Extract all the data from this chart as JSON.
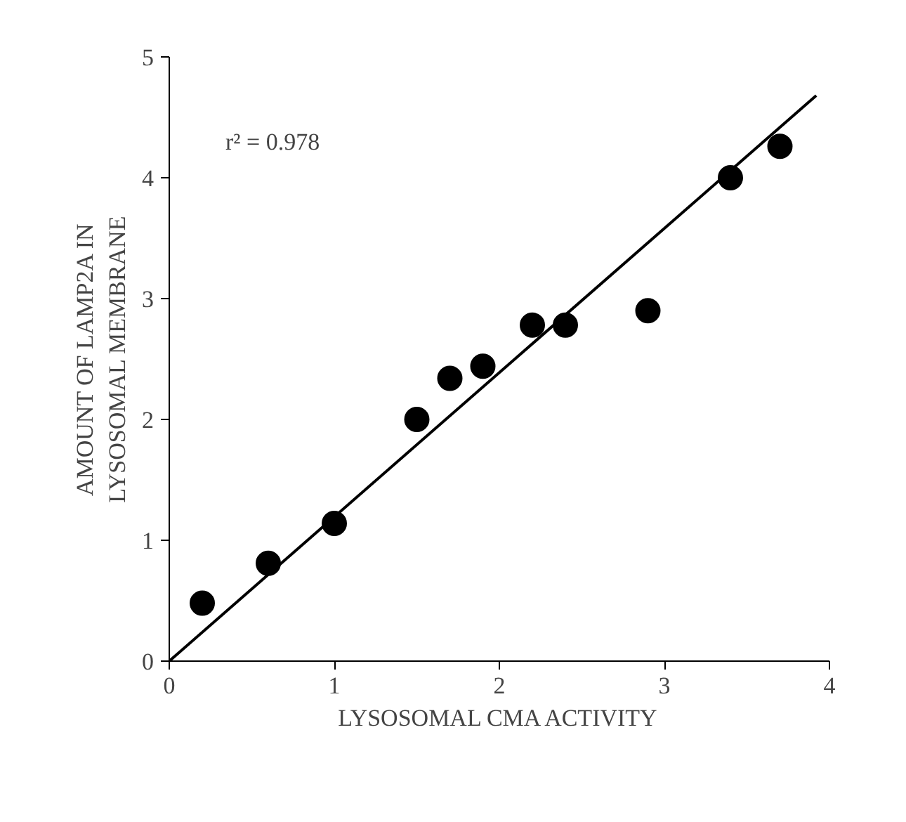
{
  "chart_data": {
    "type": "scatter",
    "xlabel": "LYSOSOMAL CMA ACTIVITY",
    "ylabel": "AMOUNT OF LAMP2A IN\nLYSOSOMAL MEMBRANE",
    "annotations": [
      "r² = 0.978"
    ],
    "xlim": [
      0,
      4
    ],
    "ylim": [
      0,
      5
    ],
    "xticks": [
      0,
      1,
      2,
      3,
      4
    ],
    "yticks": [
      0,
      1,
      2,
      3,
      4,
      5
    ],
    "grid": false,
    "series": [
      {
        "marker": "circle",
        "color": "#000000",
        "x": [
          0.2,
          0.6,
          1.0,
          1.5,
          1.7,
          1.9,
          2.2,
          2.4,
          2.9,
          3.4,
          3.7
        ],
        "values": [
          0.48,
          0.81,
          1.14,
          2.0,
          2.34,
          2.44,
          2.78,
          2.78,
          2.9,
          4.0,
          4.26
        ]
      },
      {
        "type": "line",
        "color": "#000000",
        "line_style": "solid",
        "x": [
          0,
          3.92
        ],
        "values": [
          0,
          4.68
        ]
      }
    ]
  }
}
